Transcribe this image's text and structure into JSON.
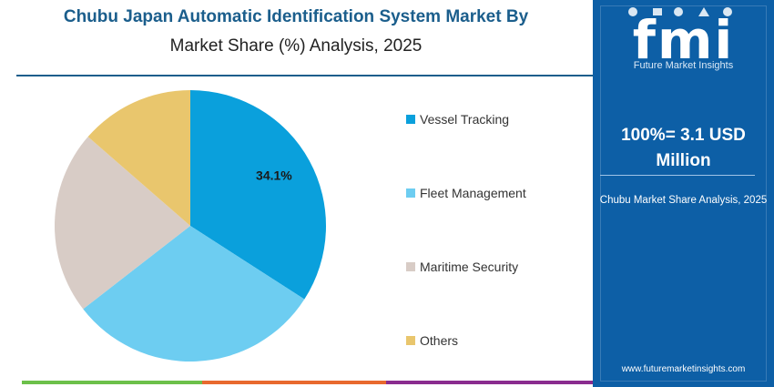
{
  "header": {
    "title_line1": "Chubu Japan Automatic Identification System Market By",
    "title_line2": "Market Share (%) Analysis, 2025"
  },
  "brand": {
    "logo_text": "fmi",
    "logo_subtitle": "Future Market Insights",
    "url": "www.futuremarketinsights.com"
  },
  "summary": {
    "market_size_line1": "100%= 3.1 USD",
    "market_size_line2": "Million",
    "region_caption": "Chubu Market Share Analysis, 2025"
  },
  "colors": {
    "title_blue": "#1b5e8c",
    "panel_blue": "#0d5fa6",
    "bottom_bar": [
      "#6cc04a",
      "#e8692e",
      "#8a2c8f"
    ]
  },
  "chart_data": {
    "type": "pie",
    "start_angle_deg": 0,
    "direction": "clockwise",
    "labels": [
      "Vessel Tracking",
      "Fleet Management",
      "Maritime Security",
      "Others"
    ],
    "values": [
      34.1,
      30.4,
      21.9,
      13.6
    ],
    "colors": [
      "#0aa0dc",
      "#6dcdf1",
      "#d8ccc6",
      "#e9c66d"
    ],
    "data_labels": [
      "34.1%",
      "",
      "",
      ""
    ],
    "legend_position": "right"
  }
}
